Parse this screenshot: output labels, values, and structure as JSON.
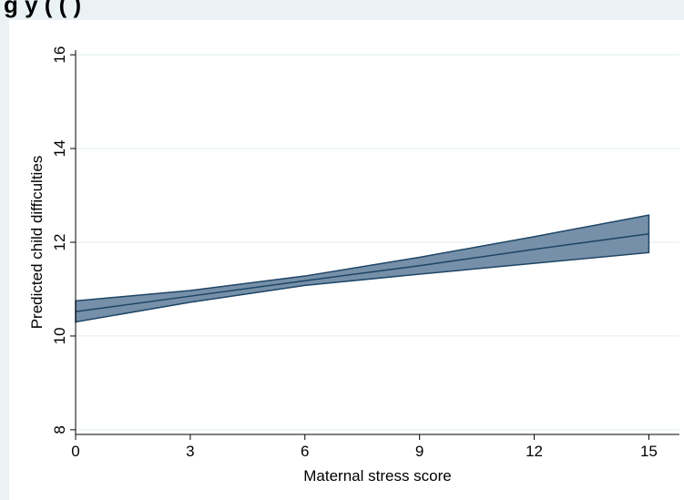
{
  "page": {
    "title_fragment": "g                                     y                    (         (  )"
  },
  "chart_data": {
    "type": "area",
    "title": "",
    "xlabel": "Maternal stress score",
    "ylabel": "Predicted child difficulties",
    "xlim": [
      0,
      15.8
    ],
    "ylim": [
      7.9,
      16.1
    ],
    "xticks": [
      0,
      3,
      6,
      9,
      12,
      15
    ],
    "yticks": [
      8,
      10,
      12,
      14,
      16
    ],
    "grid": true,
    "series": [
      {
        "x": [
          0,
          3,
          6,
          9,
          12,
          15
        ],
        "values": [
          10.52,
          10.85,
          11.18,
          11.5,
          11.85,
          12.18
        ],
        "lower": [
          10.3,
          10.72,
          11.08,
          11.32,
          11.55,
          11.78
        ],
        "upper": [
          10.75,
          10.97,
          11.28,
          11.68,
          12.12,
          12.58
        ]
      }
    ],
    "colors": {
      "band_fill": "#7590a8",
      "band_edge": "#1f4566",
      "line": "#1f4566",
      "grid": "#eaf2f3",
      "background": "#ffffff"
    }
  }
}
